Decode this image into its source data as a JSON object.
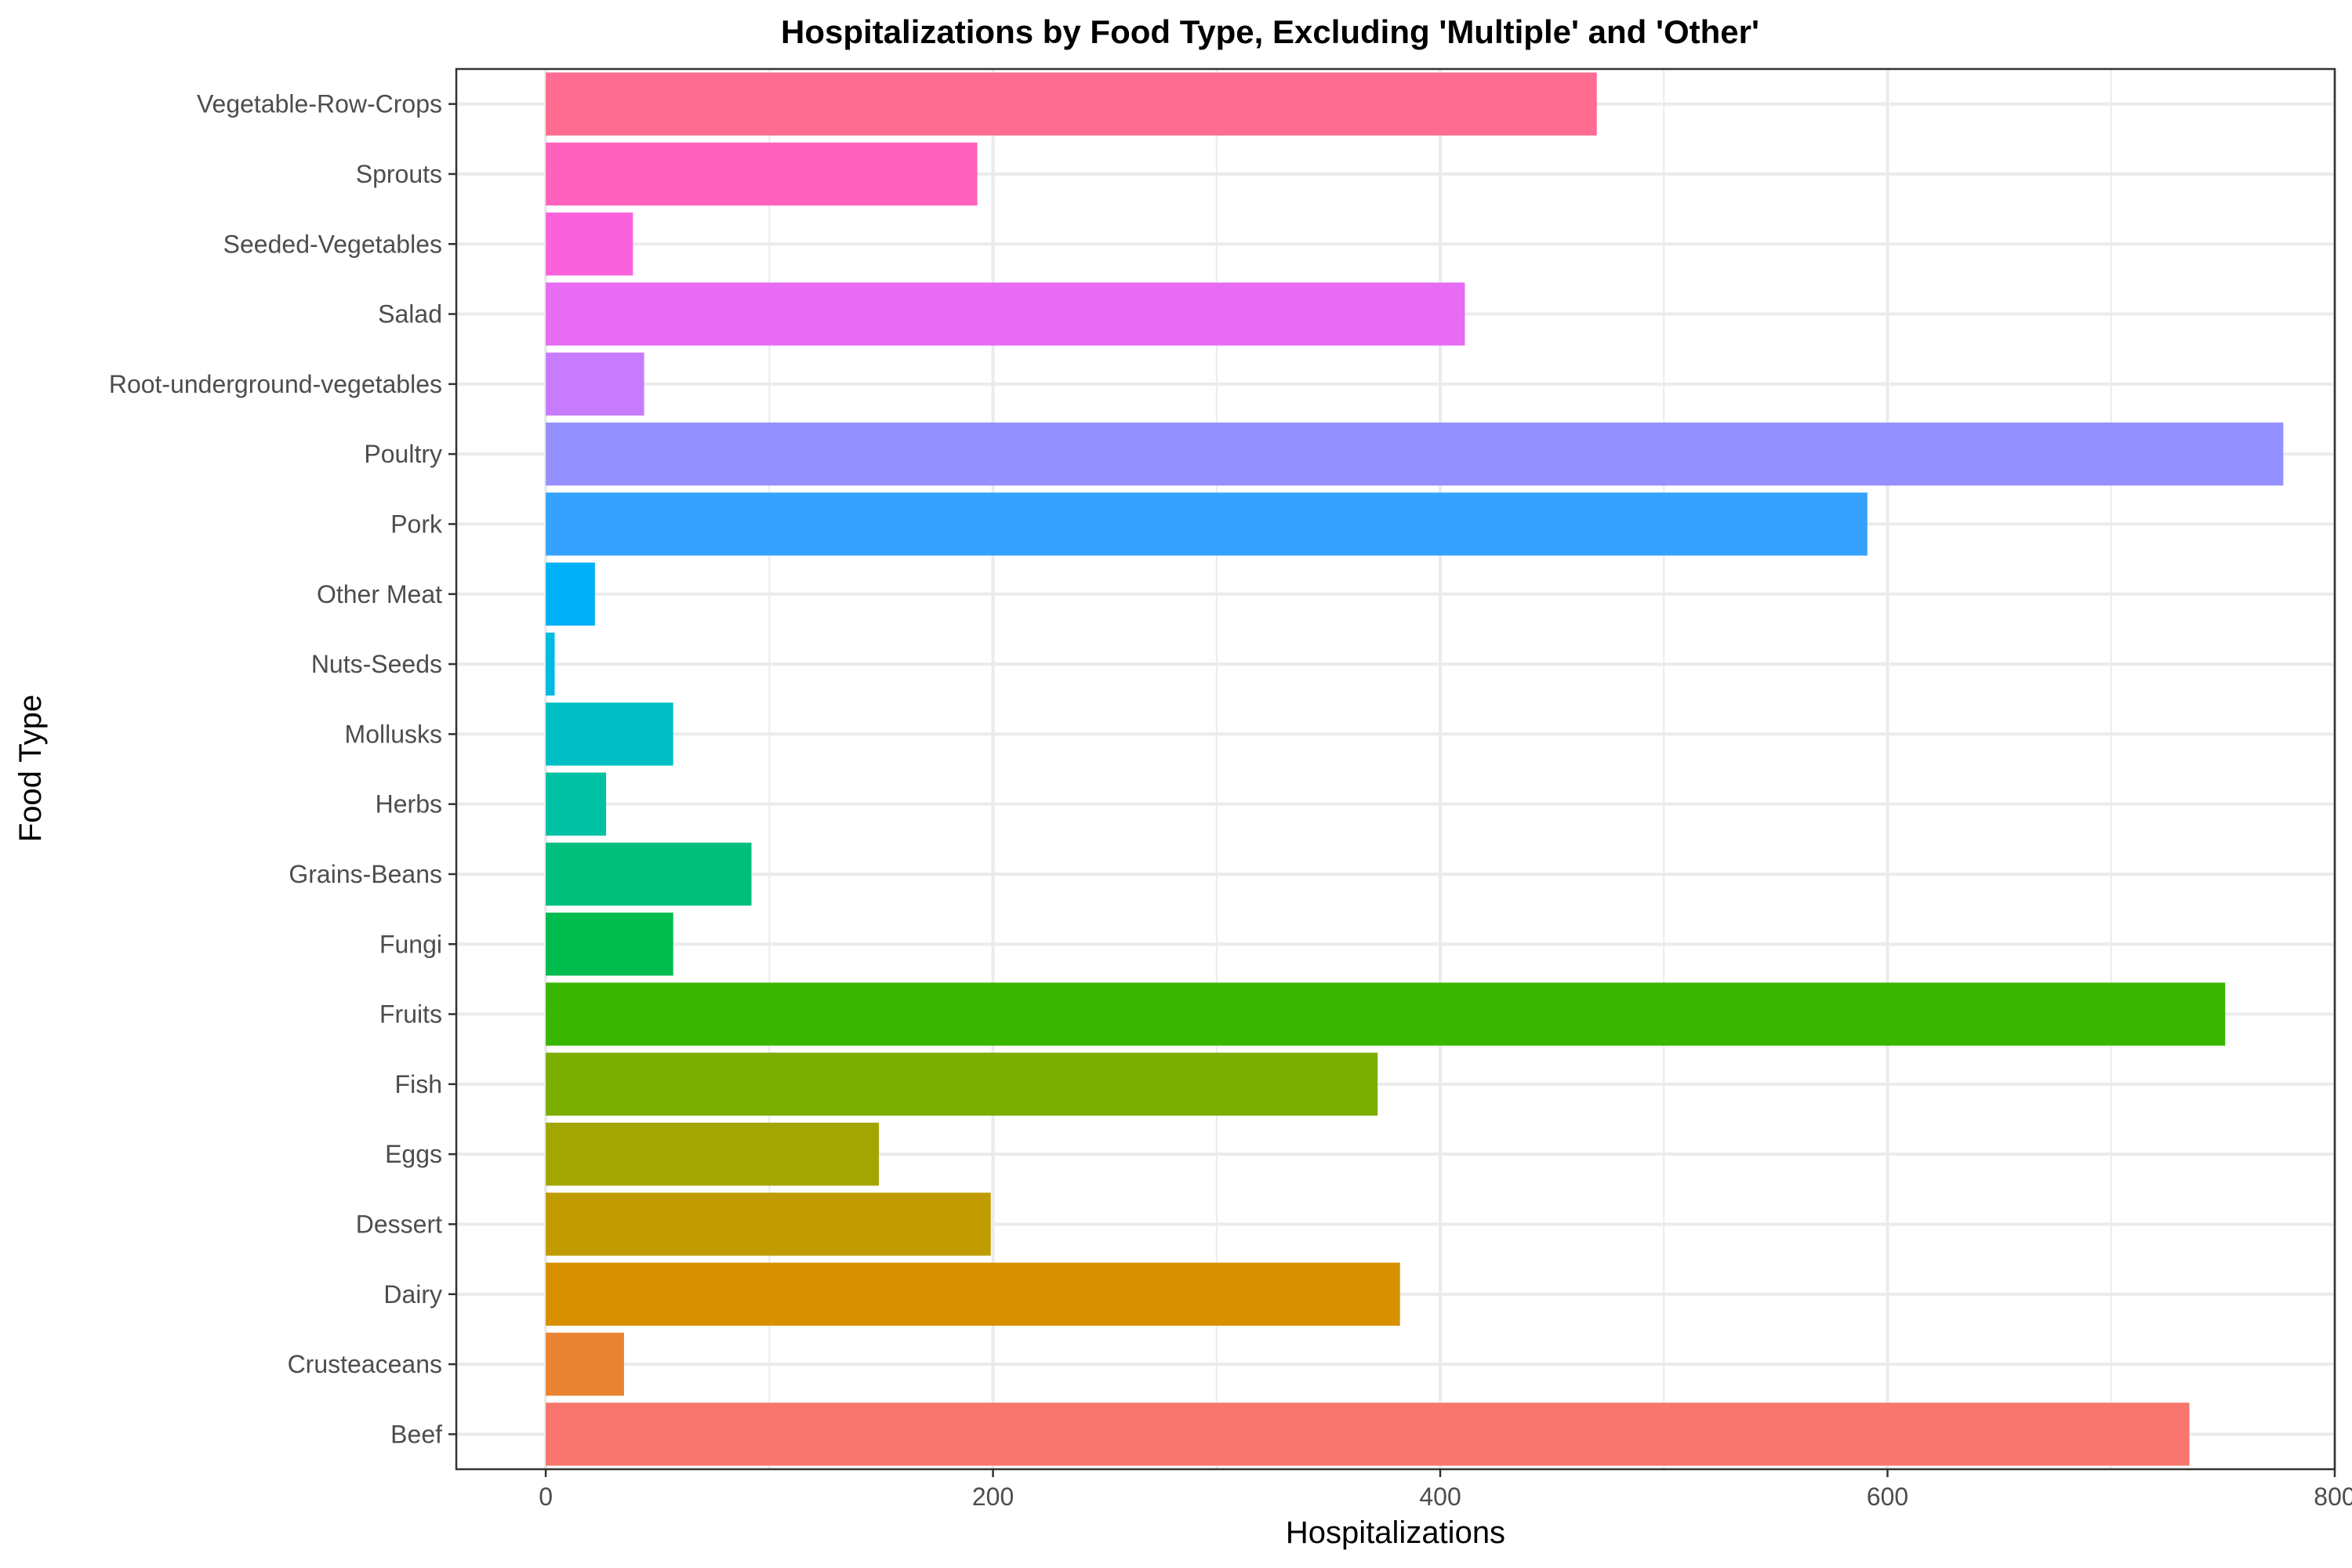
{
  "chart_data": {
    "type": "bar",
    "orientation": "horizontal",
    "title": "Hospitalizations by Food Type, Excluding 'Multiple' and 'Other'",
    "xlabel": "Hospitalizations",
    "ylabel": "Food Type",
    "xlim": [
      -40,
      800
    ],
    "xticks": [
      0,
      200,
      400,
      600,
      800
    ],
    "grid": true,
    "legend": "none",
    "categories": [
      "Beef",
      "Crusteaceans",
      "Dairy",
      "Dessert",
      "Eggs",
      "Fish",
      "Fruits",
      "Fungi",
      "Grains-Beans",
      "Herbs",
      "Mollusks",
      "Nuts-Seeds",
      "Other Meat",
      "Pork",
      "Poultry",
      "Root-underground-vegetables",
      "Salad",
      "Seeded-Vegetables",
      "Sprouts",
      "Vegetable-Row-Crops"
    ],
    "values": [
      735,
      35,
      382,
      199,
      149,
      372,
      751,
      57,
      92,
      27,
      57,
      4,
      22,
      591,
      777,
      44,
      411,
      39,
      193,
      470
    ],
    "colors": [
      "#F8766D",
      "#EA8331",
      "#D89000",
      "#C09B00",
      "#A3A500",
      "#7CAE00",
      "#39B600",
      "#00BB4E",
      "#00BF7D",
      "#00C1A3",
      "#00BFC4",
      "#00BAE0",
      "#00B0F6",
      "#35A2FF",
      "#9590FF",
      "#C77CFF",
      "#E76BF3",
      "#FA62DB",
      "#FF62BC",
      "#FF6C91"
    ]
  }
}
